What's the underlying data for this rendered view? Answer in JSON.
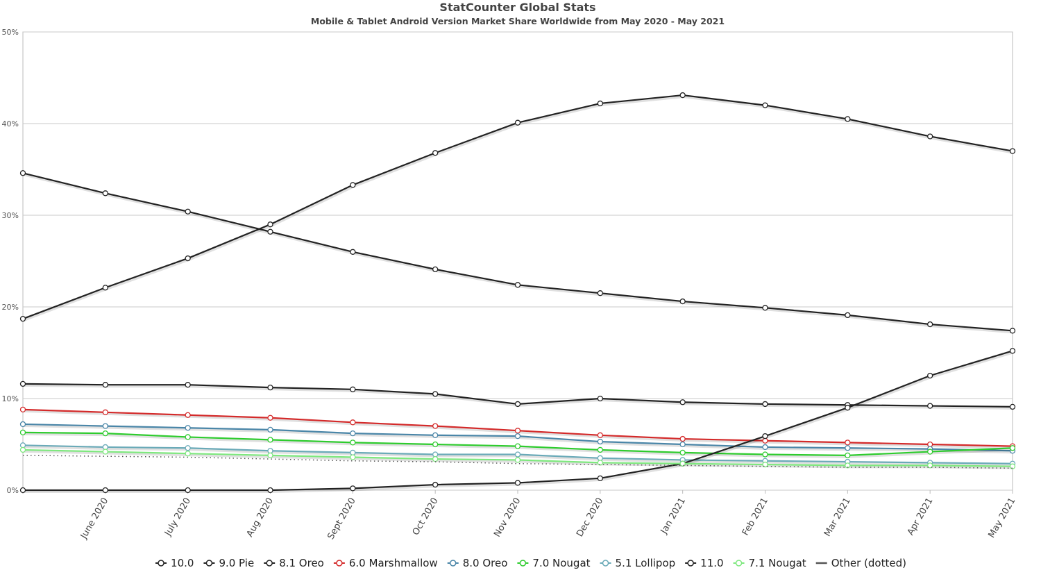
{
  "chart_data": {
    "type": "line",
    "title": "StatCounter Global Stats",
    "subtitle": "Mobile & Tablet Android Version Market Share Worldwide from May 2020 - May 2021",
    "categories": [
      null,
      "June 2020",
      "July 2020",
      "Aug 2020",
      "Sept 2020",
      "Oct 2020",
      "Nov 2020",
      "Dec 2020",
      "Jan 2021",
      "Feb 2021",
      "Mar 2021",
      "Apr 2021",
      "May 2021"
    ],
    "ylim": [
      0,
      50
    ],
    "yticks": [
      {
        "value": 0,
        "label": "0%"
      },
      {
        "value": 10,
        "label": "10%"
      },
      {
        "value": 20,
        "label": "20%"
      },
      {
        "value": 30,
        "label": "30%"
      },
      {
        "value": 40,
        "label": "40%"
      },
      {
        "value": 50,
        "label": "50%"
      }
    ],
    "grid": true,
    "legend": "bottom",
    "series": [
      {
        "name": "10.0",
        "color": "#222222",
        "values": [
          18.7,
          22.1,
          25.3,
          29.0,
          33.3,
          36.8,
          40.1,
          42.2,
          43.1,
          42.0,
          40.5,
          38.6,
          37.0
        ]
      },
      {
        "name": "9.0 Pie",
        "color": "#222222",
        "values": [
          34.6,
          32.4,
          30.4,
          28.2,
          26.0,
          24.1,
          22.4,
          21.5,
          20.6,
          19.9,
          19.1,
          18.1,
          17.4
        ]
      },
      {
        "name": "8.1 Oreo",
        "color": "#222222",
        "values": [
          11.6,
          11.5,
          11.5,
          11.2,
          11.0,
          10.5,
          9.4,
          10.0,
          9.6,
          9.4,
          9.3,
          9.2,
          9.1
        ]
      },
      {
        "name": "6.0 Marshmallow",
        "color": "#d42a2a",
        "values": [
          8.8,
          8.5,
          8.2,
          7.9,
          7.4,
          7.0,
          6.5,
          6.0,
          5.6,
          5.4,
          5.2,
          5.0,
          4.8
        ]
      },
      {
        "name": "8.0 Oreo",
        "color": "#4a86a8",
        "values": [
          7.2,
          7.0,
          6.8,
          6.6,
          6.2,
          6.0,
          5.9,
          5.3,
          5.0,
          4.7,
          4.6,
          4.5,
          4.3
        ]
      },
      {
        "name": "7.0 Nougat",
        "color": "#2ecc2e",
        "values": [
          6.3,
          6.2,
          5.8,
          5.5,
          5.2,
          5.0,
          4.8,
          4.4,
          4.1,
          3.9,
          3.8,
          4.2,
          4.6
        ]
      },
      {
        "name": "5.1 Lollipop",
        "color": "#6aaab8",
        "values": [
          4.9,
          4.7,
          4.6,
          4.3,
          4.1,
          3.9,
          3.9,
          3.5,
          3.3,
          3.2,
          3.1,
          3.0,
          2.9
        ]
      },
      {
        "name": "11.0",
        "color": "#222222",
        "values": [
          0,
          0,
          0,
          0,
          0.2,
          0.6,
          0.8,
          1.3,
          2.9,
          5.9,
          9.0,
          12.5,
          15.2
        ]
      },
      {
        "name": "7.1 Nougat",
        "color": "#7ee87e",
        "values": [
          4.4,
          4.2,
          4.0,
          3.8,
          3.6,
          3.4,
          3.3,
          3.0,
          2.9,
          2.8,
          2.7,
          2.7,
          2.6
        ]
      },
      {
        "name": "Other (dotted)",
        "color": "#555555",
        "style": "dotted",
        "values": [
          3.8,
          3.7,
          3.6,
          3.4,
          3.2,
          3.1,
          2.9,
          2.8,
          2.7,
          2.6,
          2.5,
          2.5,
          2.4
        ]
      }
    ]
  }
}
